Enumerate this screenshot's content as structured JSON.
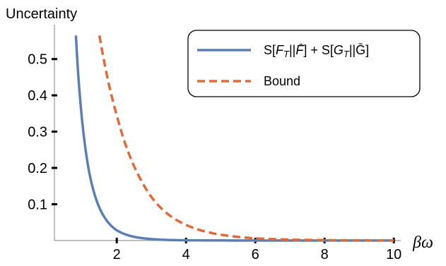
{
  "chart_data": {
    "type": "line",
    "ylabel": "Uncertainty",
    "xlabel": "βω",
    "xlim": [
      0.2,
      10.2
    ],
    "ylim": [
      -0.01,
      0.585
    ],
    "x_ticks": [
      2,
      4,
      6,
      8,
      10
    ],
    "y_ticks": [
      0.1,
      0.2,
      0.3,
      0.4,
      0.5
    ],
    "x_tick_labels": [
      "2",
      "4",
      "6",
      "8",
      "10"
    ],
    "y_tick_labels": [
      "0.1",
      "0.2",
      "0.3",
      "0.4",
      "0.5"
    ],
    "legend_position": "top-right",
    "series": [
      {
        "name": "S[F_T||F̄] + S[G_T||Ḡ]",
        "style": "solid",
        "color": "#5b7fb5",
        "x": [
          0.82,
          0.9,
          1.0,
          1.1,
          1.2,
          1.35,
          1.5,
          1.75,
          2.0,
          2.25,
          2.5,
          3.0,
          3.5,
          4.0,
          4.5,
          5.0,
          6.0,
          7.0,
          8.0,
          9.0,
          10.0
        ],
        "values": [
          0.565,
          0.44,
          0.33,
          0.25,
          0.19,
          0.13,
          0.09,
          0.05,
          0.028,
          0.017,
          0.01,
          0.004,
          0.0015,
          0.0006,
          0.0003,
          0.0001,
          0.0,
          0.0,
          0.0,
          0.0,
          0.0
        ]
      },
      {
        "name": "Bound",
        "style": "dashed",
        "color": "#e06a3a",
        "x": [
          1.5,
          1.75,
          2.0,
          2.25,
          2.5,
          2.75,
          3.0,
          3.25,
          3.5,
          3.75,
          4.0,
          4.5,
          5.0,
          5.5,
          6.0,
          7.0,
          8.0,
          9.0,
          10.0
        ],
        "values": [
          0.565,
          0.44,
          0.345,
          0.265,
          0.205,
          0.158,
          0.12,
          0.092,
          0.071,
          0.055,
          0.043,
          0.026,
          0.016,
          0.01,
          0.006,
          0.0025,
          0.001,
          0.0004,
          0.0002
        ]
      }
    ]
  }
}
